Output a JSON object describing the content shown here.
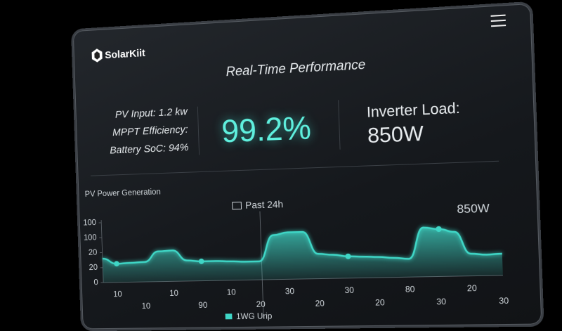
{
  "header": {
    "logo": "SolarKiit",
    "title": "Real-Time Performance"
  },
  "metrics": {
    "left": [
      "PV Input: 1.2 kw",
      "MPPT Efficiency:",
      "Battery SoC: 94%"
    ],
    "center": "99.2%",
    "right_label": "Inverter Load:",
    "right_value": "850W"
  },
  "chart_data": {
    "type": "area",
    "title": "PV Power Generation",
    "subtitle": "Past 24h",
    "annotation": "850W",
    "categories": [
      null,
      "10",
      null,
      "10",
      null,
      "10",
      null,
      "90",
      null,
      "10",
      null,
      "20",
      null,
      "30",
      null,
      "20",
      null,
      "30",
      null,
      "20",
      null,
      "80",
      null,
      "30",
      null,
      "20",
      null,
      "30"
    ],
    "series": [
      {
        "name": "1WG Urip",
        "color": "#3fd6c6",
        "values": [
          40,
          31,
          32,
          33,
          50,
          51,
          34,
          32,
          32,
          31,
          30,
          30,
          72,
          76,
          76,
          40,
          38,
          35,
          34,
          33,
          31,
          29,
          78,
          75,
          70,
          35,
          33,
          34
        ]
      }
    ],
    "ylim": [
      0,
      100
    ],
    "yticks": [
      0,
      {
        "value": 25,
        "label": "20"
      },
      {
        "value": 50,
        "label": "20"
      },
      {
        "value": 75,
        "label": "100"
      },
      100
    ],
    "grid": false,
    "markers": [
      1,
      7,
      17,
      23
    ]
  }
}
